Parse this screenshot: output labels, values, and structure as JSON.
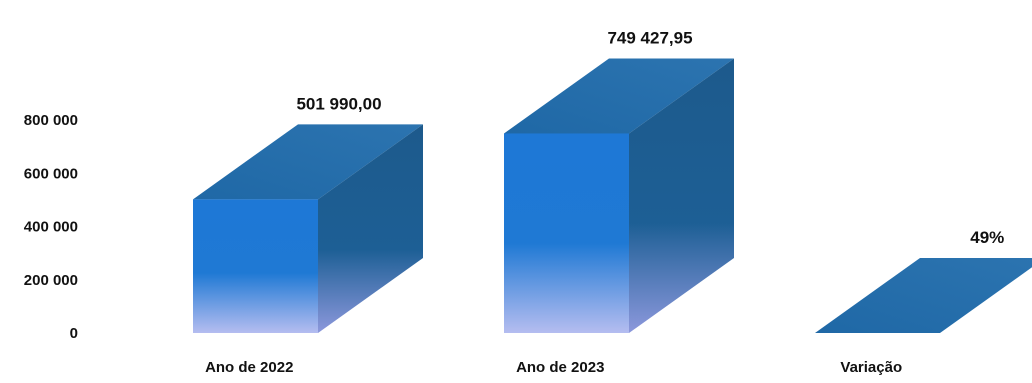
{
  "chart_data": {
    "type": "bar",
    "style": "3d-box",
    "categories": [
      "Ano de 2022",
      "Ano de 2023",
      "Variação"
    ],
    "values": [
      501990.0,
      749427.95,
      0.49
    ],
    "data_labels": [
      "501 990,00",
      "749 427,95",
      "49%"
    ],
    "y_ticks": [
      {
        "value": 0,
        "label": "0"
      },
      {
        "value": 200000,
        "label": "200 000"
      },
      {
        "value": 400000,
        "label": "400 000"
      },
      {
        "value": 600000,
        "label": "600 000"
      },
      {
        "value": 800000,
        "label": "800 000"
      }
    ],
    "ylim": [
      0,
      800000
    ],
    "grid": false,
    "legend": "none",
    "title": "",
    "xlabel": "",
    "ylabel": ""
  },
  "colors": {
    "front": "#1e78d6",
    "front_fade": "#a9b4ec",
    "side": "#1d5f92",
    "top": "#2a6fa8",
    "text": "#111111"
  }
}
